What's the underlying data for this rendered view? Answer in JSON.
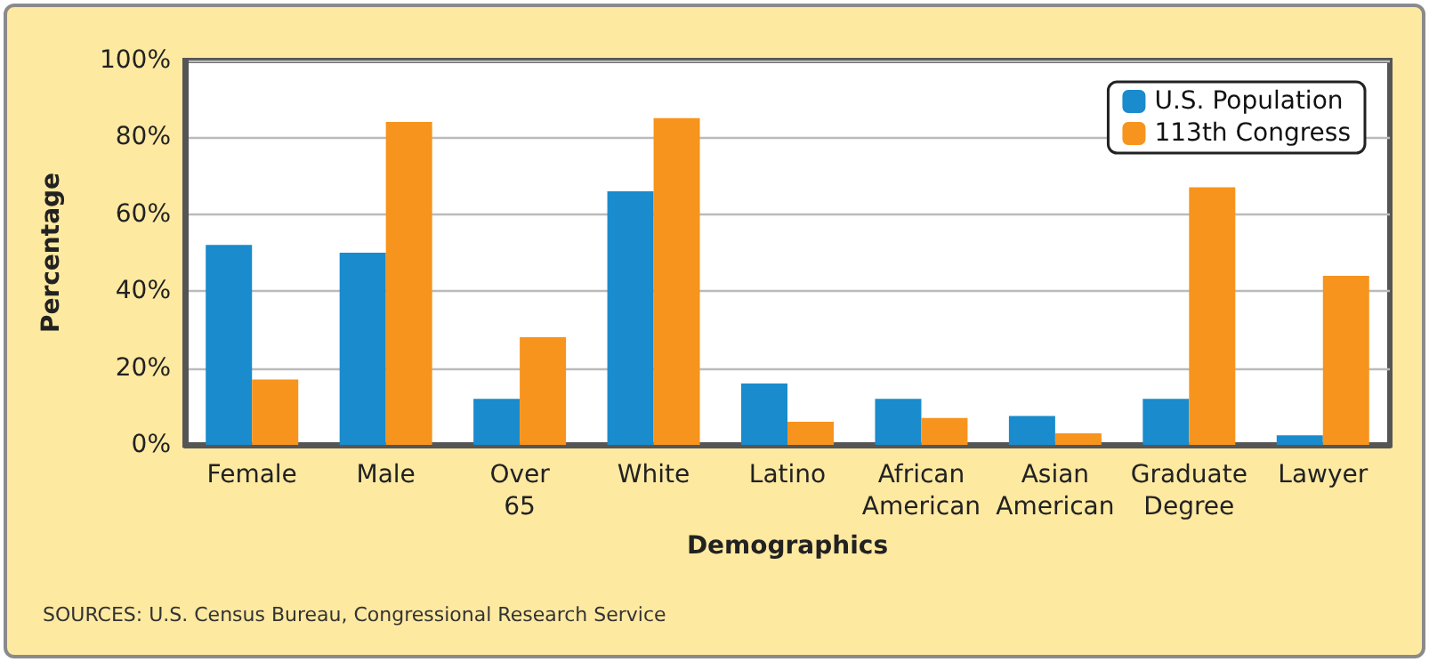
{
  "chart_data": {
    "type": "bar",
    "xlabel": "Demographics",
    "ylabel": "Percentage",
    "categories": [
      "Female",
      "Male",
      "Over 65",
      "White",
      "Latino",
      "African American",
      "Asian American",
      "Graduate Degree",
      "Lawyer"
    ],
    "series": [
      {
        "name": "U.S. Population",
        "color": "#1a8bcc",
        "values": [
          52,
          50,
          12,
          66,
          16,
          12,
          7.5,
          12,
          2.5
        ]
      },
      {
        "name": "113th Congress",
        "color": "#f7941d",
        "values": [
          17,
          84,
          28,
          85,
          6,
          7,
          3,
          67,
          44
        ]
      }
    ],
    "ylim": [
      0,
      100
    ],
    "yticks": [
      {
        "value": 0,
        "label": "0%"
      },
      {
        "value": 20,
        "label": "20%"
      },
      {
        "value": 40,
        "label": "40%"
      },
      {
        "value": 60,
        "label": "60%"
      },
      {
        "value": 80,
        "label": "80%"
      },
      {
        "value": 100,
        "label": "100%"
      }
    ],
    "grid": "y",
    "legend": "top right",
    "annotations": [
      "SOURCES: U.S. Census Bureau, Congressional Research Service"
    ]
  }
}
